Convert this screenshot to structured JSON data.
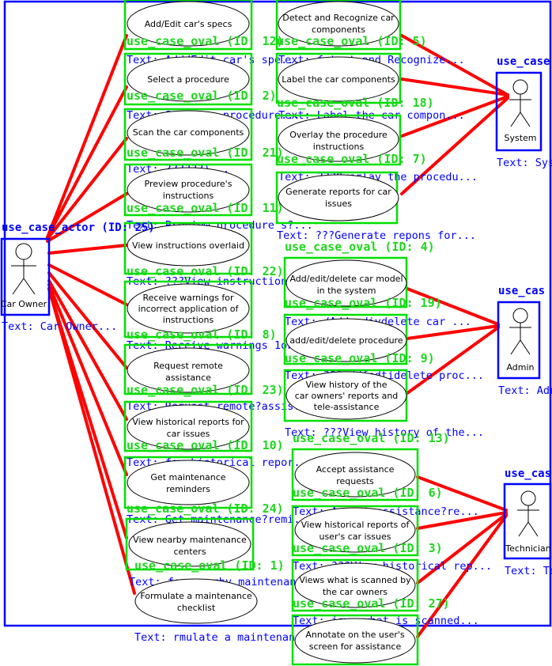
{
  "colors": {
    "association": "#ff0000",
    "use_case_box": "#00e000",
    "actor_box": "#0000ff",
    "ocr_text": "#0000ff",
    "frame": "#0000ff"
  },
  "actors": {
    "car_owner": {
      "name": "Car Owner",
      "tag": "use_case_actor (ID: 25)",
      "ocr": "Text: Car Owner..."
    },
    "system": {
      "name": "System",
      "tag": "use_case",
      "ocr": "Text: Sys"
    },
    "admin": {
      "name": "Admin",
      "tag": "use_cas",
      "ocr": "Text: Adr"
    },
    "technician": {
      "name": "Technician",
      "tag": "use_cas",
      "ocr": "Text: Te"
    }
  },
  "use_cases": {
    "uc12": {
      "lines": [
        "Add/Edit car's specs"
      ],
      "tag": "use_case_oval (ID: 12)",
      "ocr": "Text: Add/Edit car's spe..."
    },
    "uc2": {
      "lines": [
        "Select a procedure"
      ],
      "tag": "use_case_oval (ID: 2)",
      "ocr": "Text: Select a procedure..."
    },
    "uc21": {
      "lines": [
        "Scan the car components"
      ],
      "tag": "use_case_oval (ID: 21)",
      "ocr": "Text: ??????)..."
    },
    "uc11": {
      "lines": [
        "Preview procedure's",
        "instructions"
      ],
      "tag": "use_case_oval (ID: 11)",
      "ocr": "Text: Preview procedure's?..."
    },
    "uc22": {
      "lines": [
        "View instructions overlaid"
      ],
      "tag": "use_case_oval (ID: 22)",
      "ocr": "Text: ???View instructions o..."
    },
    "uc8": {
      "lines": [
        "Receive warnings for",
        "incorrect application of",
        "instructions"
      ],
      "tag": "use_case_oval (ID: 8)",
      "ocr": "Text: Receive warnings 1oF..."
    },
    "uc23": {
      "lines": [
        "Request remote",
        "assistance"
      ],
      "tag": "use_case_oval (ID: 23)",
      "ocr": "Text: Request remote?assis..."
    },
    "uc10": {
      "lines": [
        "View historical reports for",
        "car issues"
      ],
      "tag": "use_case_oval (ID: 10)",
      "ocr": "Text: few historical repor..."
    },
    "uc24": {
      "lines": [
        "Get maintenance",
        "reminders"
      ],
      "tag": "use_case_oval (ID: 24)",
      "ocr": "Text: Get maintenance?remi..."
    },
    "uc1": {
      "lines": [
        "View nearby maintenance",
        "centers"
      ],
      "tag": "use_case_oval (ID: 1)",
      "ocr": "Text: few nearby maintenan..."
    },
    "ucf": {
      "lines": [
        "Formulate a maintenance",
        "checklist"
      ],
      "tag": "",
      "ocr": "Text: rmulate a maintenanc..."
    },
    "uc5": {
      "lines": [
        "Detect and Recognize car",
        "components"
      ],
      "tag": "use_case_oval (ID: 5)",
      "ocr": "Text: fetect and Recognize..."
    },
    "uc18": {
      "lines": [
        "Label the car components"
      ],
      "tag": "use_case_oval (ID: 18)",
      "ocr": "Text: Label the car compon..."
    },
    "uc7": {
      "lines": [
        "Overlay the procedure",
        "instructions"
      ],
      "tag": "use_case_oval (ID: 7)",
      "ocr": "Text: ???Overlay the procedu..."
    },
    "uc4": {
      "lines": [
        "Generate reports for car",
        "issues"
      ],
      "tag": "use_case_oval (ID: 4)",
      "ocr": "Text: ???Generate repons for..."
    },
    "uc19": {
      "lines": [
        "Add/edit/delete car model",
        "in the system"
      ],
      "tag": "use_case_oval (ID: 19)",
      "ocr": "Text: /Addredivdelete car ..."
    },
    "uc9": {
      "lines": [
        "add/edit/delete procedure"
      ],
      "tag": "use_case_oval (ID: 9)",
      "ocr": "Text: ???addfedtidelete proc..."
    },
    "uc13": {
      "lines": [
        "View history of the",
        "car owners' reports and",
        "tele-assistance"
      ],
      "tag": "use_case_oval (ID: 13)",
      "ocr": "Text: ???View history of the..."
    },
    "uc6": {
      "lines": [
        "Accept assistance",
        "requests"
      ],
      "tag": "use_case_oval (ID: 6)",
      "ocr": "Text: Accept assistance?re..."
    },
    "uc3": {
      "lines": [
        "View historical reports of",
        "user's car issues"
      ],
      "tag": "use_case_oval (ID: 3)",
      "ocr": "Text: ???View historical rep..."
    },
    "uc27": {
      "lines": [
        "Views what is scanned by",
        "the car owners"
      ],
      "tag": "use_case_oval (ID: 27)",
      "ocr": "Text: jews what is scanned..."
    },
    "uc26": {
      "lines": [
        "Annotate on the user's",
        "screen for assistance"
      ],
      "tag": "",
      "ocr": ""
    }
  }
}
